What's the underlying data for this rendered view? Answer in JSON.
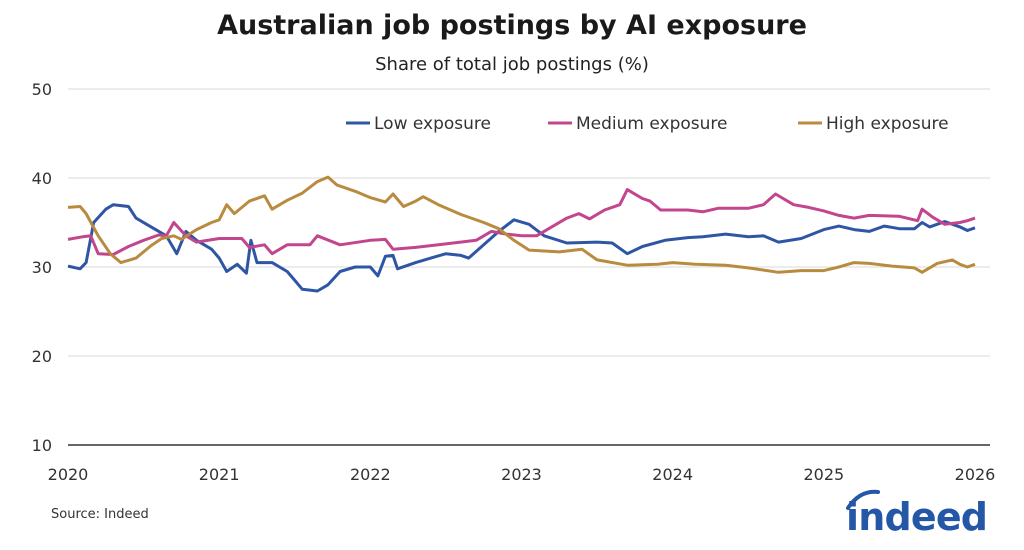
{
  "chart_data": {
    "type": "line",
    "title": "Australian job postings by AI exposure",
    "subtitle": "Share of total job postings (%)",
    "xlabel": "",
    "ylabel": "",
    "xlim": [
      2020,
      2026
    ],
    "ylim": [
      10,
      50
    ],
    "x_ticks": [
      "2020",
      "2021",
      "2022",
      "2023",
      "2024",
      "2025",
      "2026"
    ],
    "y_ticks": [
      "10",
      "20",
      "30",
      "40",
      "50"
    ],
    "grid": "horizontal",
    "legend_position": "top-right",
    "series": [
      {
        "name": "Low exposure",
        "color": "#2f56a5",
        "x": [
          2020.0,
          2020.08,
          2020.12,
          2020.17,
          2020.25,
          2020.3,
          2020.4,
          2020.45,
          2020.55,
          2020.65,
          2020.72,
          2020.78,
          2020.85,
          2020.95,
          2021.0,
          2021.05,
          2021.12,
          2021.18,
          2021.21,
          2021.25,
          2021.35,
          2021.45,
          2021.5,
          2021.55,
          2021.65,
          2021.72,
          2021.8,
          2021.9,
          2022.0,
          2022.05,
          2022.1,
          2022.15,
          2022.18,
          2022.3,
          2022.4,
          2022.5,
          2022.6,
          2022.65,
          2022.75,
          2022.85,
          2022.95,
          2023.05,
          2023.15,
          2023.3,
          2023.5,
          2023.6,
          2023.7,
          2023.8,
          2023.95,
          2024.1,
          2024.2,
          2024.35,
          2024.5,
          2024.6,
          2024.7,
          2024.85,
          2025.0,
          2025.1,
          2025.2,
          2025.3,
          2025.4,
          2025.5,
          2025.6,
          2025.65,
          2025.7,
          2025.8,
          2025.9,
          2025.95,
          2026.0
        ],
        "values": [
          30.1,
          29.8,
          30.5,
          35.0,
          36.5,
          37.0,
          36.8,
          35.5,
          34.5,
          33.5,
          31.5,
          34.0,
          33.0,
          32.0,
          31.0,
          29.5,
          30.3,
          29.3,
          33.0,
          30.5,
          30.5,
          29.5,
          28.5,
          27.5,
          27.3,
          28.0,
          29.5,
          30.0,
          30.0,
          29.0,
          31.2,
          31.3,
          29.8,
          30.5,
          31.0,
          31.5,
          31.3,
          31.0,
          32.5,
          34.0,
          35.3,
          34.8,
          33.5,
          32.7,
          32.8,
          32.7,
          31.5,
          32.3,
          33.0,
          33.3,
          33.4,
          33.7,
          33.4,
          33.5,
          32.8,
          33.2,
          34.2,
          34.6,
          34.2,
          34.0,
          34.6,
          34.3,
          34.3,
          35.0,
          34.5,
          35.1,
          34.5,
          34.1,
          34.4
        ]
      },
      {
        "name": "Medium exposure",
        "color": "#c2468d",
        "x": [
          2020.0,
          2020.1,
          2020.15,
          2020.2,
          2020.3,
          2020.4,
          2020.5,
          2020.6,
          2020.65,
          2020.7,
          2020.78,
          2020.85,
          2021.0,
          2021.15,
          2021.2,
          2021.3,
          2021.35,
          2021.45,
          2021.6,
          2021.65,
          2021.8,
          2022.0,
          2022.1,
          2022.15,
          2022.3,
          2022.5,
          2022.7,
          2022.8,
          2022.9,
          2023.0,
          2023.1,
          2023.2,
          2023.3,
          2023.38,
          2023.45,
          2023.55,
          2023.65,
          2023.7,
          2023.8,
          2023.85,
          2023.92,
          2024.1,
          2024.2,
          2024.3,
          2024.5,
          2024.6,
          2024.68,
          2024.8,
          2024.9,
          2025.0,
          2025.1,
          2025.2,
          2025.3,
          2025.5,
          2025.62,
          2025.65,
          2025.72,
          2025.8,
          2025.9,
          2025.95,
          2026.0
        ],
        "values": [
          33.1,
          33.4,
          33.5,
          31.5,
          31.4,
          32.3,
          33.0,
          33.6,
          33.5,
          35.0,
          33.5,
          32.8,
          33.2,
          33.2,
          32.2,
          32.5,
          31.5,
          32.5,
          32.5,
          33.5,
          32.5,
          33.0,
          33.1,
          32.0,
          32.2,
          32.6,
          33.0,
          34.0,
          33.7,
          33.5,
          33.5,
          34.5,
          35.5,
          36.0,
          35.4,
          36.4,
          37.0,
          38.7,
          37.7,
          37.4,
          36.4,
          36.4,
          36.2,
          36.6,
          36.6,
          37.0,
          38.2,
          37.0,
          36.7,
          36.3,
          35.8,
          35.5,
          35.8,
          35.7,
          35.2,
          36.5,
          35.6,
          34.8,
          35.0,
          35.2,
          35.5
        ]
      },
      {
        "name": "High exposure",
        "color": "#b98b3f",
        "x": [
          2020.0,
          2020.08,
          2020.12,
          2020.2,
          2020.28,
          2020.35,
          2020.45,
          2020.55,
          2020.62,
          2020.7,
          2020.75,
          2020.85,
          2020.95,
          2021.0,
          2021.05,
          2021.1,
          2021.2,
          2021.3,
          2021.35,
          2021.45,
          2021.55,
          2021.65,
          2021.72,
          2021.78,
          2021.9,
          2022.0,
          2022.1,
          2022.15,
          2022.22,
          2022.3,
          2022.35,
          2022.45,
          2022.6,
          2022.75,
          2022.85,
          2022.95,
          2023.05,
          2023.25,
          2023.4,
          2023.5,
          2023.7,
          2023.9,
          2024.0,
          2024.15,
          2024.35,
          2024.5,
          2024.7,
          2024.85,
          2025.0,
          2025.1,
          2025.2,
          2025.3,
          2025.45,
          2025.6,
          2025.65,
          2025.75,
          2025.85,
          2025.9,
          2025.95,
          2026.0
        ],
        "values": [
          36.7,
          36.8,
          36.0,
          33.5,
          31.5,
          30.5,
          31.0,
          32.4,
          33.2,
          33.5,
          33.1,
          34.2,
          35.0,
          35.3,
          37.0,
          36.0,
          37.4,
          38.0,
          36.5,
          37.5,
          38.3,
          39.6,
          40.1,
          39.2,
          38.5,
          37.8,
          37.3,
          38.2,
          36.8,
          37.4,
          37.9,
          37.0,
          35.9,
          35.0,
          34.3,
          33.0,
          31.9,
          31.7,
          32.0,
          30.8,
          30.2,
          30.3,
          30.5,
          30.3,
          30.2,
          29.9,
          29.4,
          29.6,
          29.6,
          30.0,
          30.5,
          30.4,
          30.1,
          29.9,
          29.4,
          30.4,
          30.8,
          30.3,
          30.0,
          30.3
        ]
      }
    ]
  },
  "source": "Source: Indeed",
  "logo_text": "indeed",
  "logo_color": "#2557a7"
}
